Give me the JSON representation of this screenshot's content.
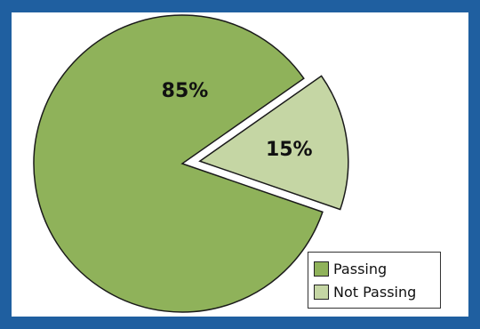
{
  "chart_data": {
    "type": "pie",
    "title": "",
    "categories": [
      "Passing",
      "Not Passing"
    ],
    "values": [
      85,
      15
    ],
    "value_labels": [
      "85%",
      "15%"
    ],
    "colors": [
      "#8fb25a",
      "#c5d6a4"
    ],
    "exploded": [
      false,
      true
    ],
    "legend_position": "bottom-right"
  }
}
